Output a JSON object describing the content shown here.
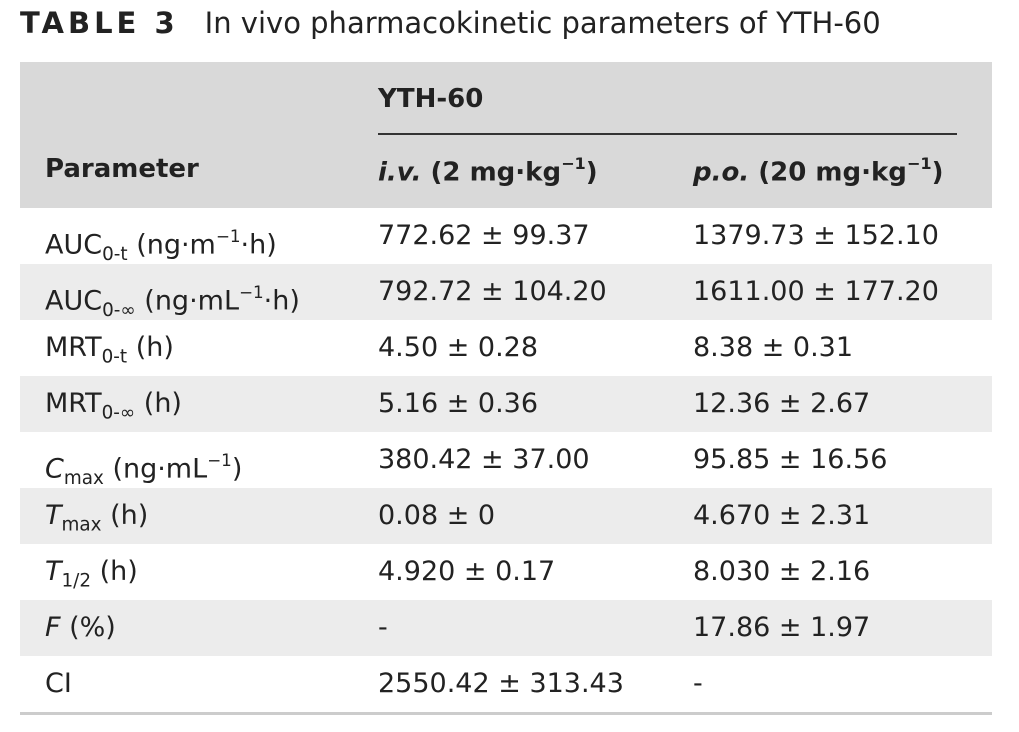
{
  "header": {
    "label": "TABLE 3",
    "title": "In vivo pharmacokinetic parameters of YTH-60"
  },
  "table": {
    "group_header": "YTH-60",
    "columns": [
      [
        {
          "text": "Parameter"
        }
      ],
      [
        {
          "text": "i.v.",
          "italic": true
        },
        {
          "text": " (2 mg·kg"
        },
        {
          "text": "−1",
          "pos": "sup"
        },
        {
          "text": ")"
        }
      ],
      [
        {
          "text": "p.o.",
          "italic": true
        },
        {
          "text": " (20 mg·kg"
        },
        {
          "text": "−1",
          "pos": "sup"
        },
        {
          "text": ")"
        }
      ]
    ],
    "rows": [
      [
        [
          {
            "text": "AUC"
          },
          {
            "text": "0-t",
            "pos": "sub"
          },
          {
            "text": " (ng·m"
          },
          {
            "text": "−1",
            "pos": "sup"
          },
          {
            "text": "·h)"
          }
        ],
        "772.62 ± 99.37",
        "1379.73 ± 152.10"
      ],
      [
        [
          {
            "text": "AUC"
          },
          {
            "text": "0-∞",
            "pos": "sub"
          },
          {
            "text": " (ng·mL"
          },
          {
            "text": "−1",
            "pos": "sup"
          },
          {
            "text": "·h)"
          }
        ],
        "792.72 ± 104.20",
        "1611.00 ± 177.20"
      ],
      [
        [
          {
            "text": "MRT"
          },
          {
            "text": "0-t",
            "pos": "sub"
          },
          {
            "text": " (h)"
          }
        ],
        "4.50 ± 0.28",
        "8.38 ± 0.31"
      ],
      [
        [
          {
            "text": "MRT"
          },
          {
            "text": "0-∞",
            "pos": "sub"
          },
          {
            "text": " (h)"
          }
        ],
        "5.16 ± 0.36",
        "12.36 ± 2.67"
      ],
      [
        [
          {
            "text": "C",
            "italic": true
          },
          {
            "text": "max",
            "pos": "sub"
          },
          {
            "text": " (ng·mL"
          },
          {
            "text": "−1",
            "pos": "sup"
          },
          {
            "text": ")"
          }
        ],
        "380.42 ± 37.00",
        "95.85 ± 16.56"
      ],
      [
        [
          {
            "text": "T",
            "italic": true
          },
          {
            "text": "max",
            "pos": "sub"
          },
          {
            "text": " (h)"
          }
        ],
        "0.08 ± 0",
        "4.670 ± 2.31"
      ],
      [
        [
          {
            "text": "T",
            "italic": true
          },
          {
            "text": "1/2",
            "pos": "sub"
          },
          {
            "text": " (h)"
          }
        ],
        "4.920 ± 0.17",
        "8.030 ± 2.16"
      ],
      [
        [
          {
            "text": "F",
            "italic": true
          },
          {
            "text": " (%)"
          }
        ],
        "-",
        "17.86 ± 1.97"
      ],
      [
        [
          {
            "text": "CI"
          }
        ],
        "2550.42 ± 313.43",
        "-"
      ]
    ]
  }
}
